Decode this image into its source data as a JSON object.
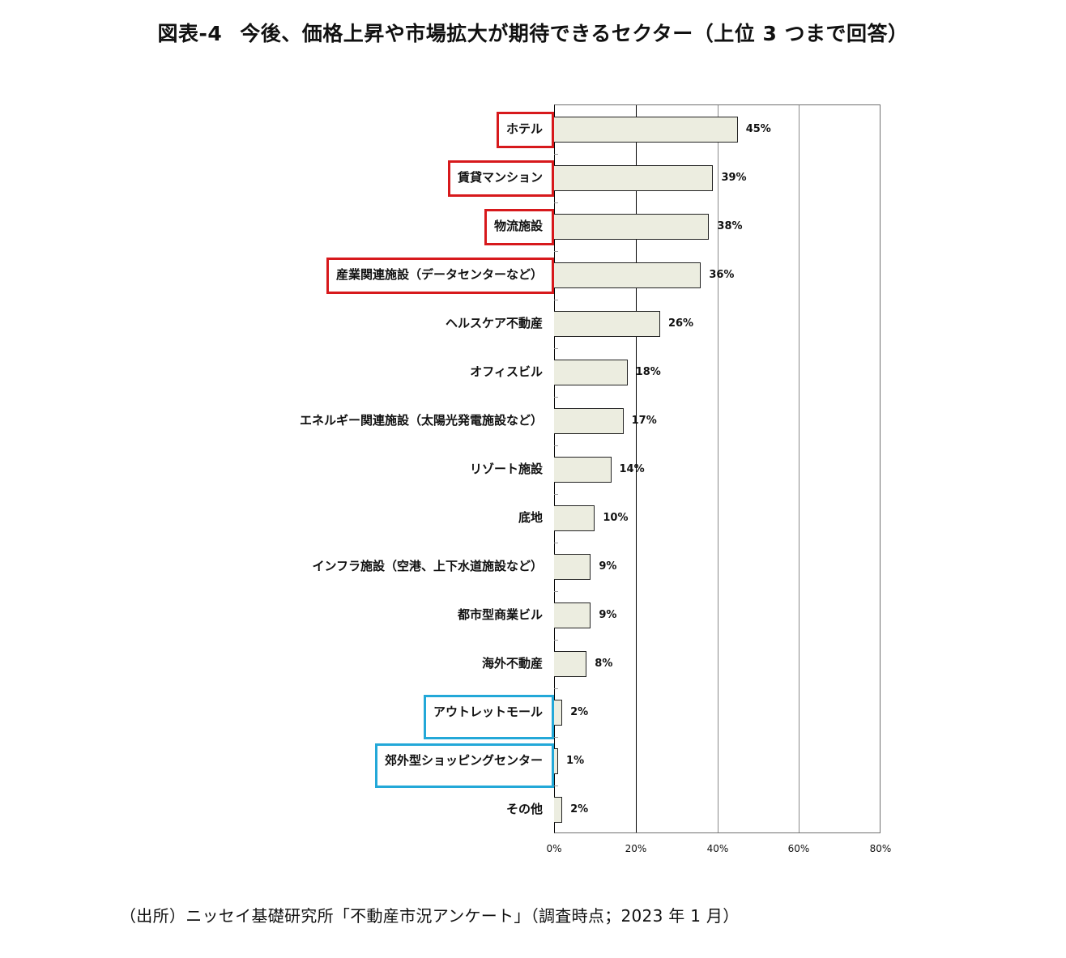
{
  "title": {
    "figure_no": "図表-4",
    "text": "今後、価格上昇や市場拡大が期待できるセクター（上位 3 つまで回答）"
  },
  "source": "（出所）ニッセイ基礎研究所「不動産市況アンケート」（調査時点；2023 年 1 月）",
  "colors": {
    "bar_fill": "#ecede0",
    "bar_border": "#222222",
    "highlight_red": "#d7191c",
    "highlight_blue": "#23a8d8"
  },
  "axis": {
    "ticks": [
      "0%",
      "20%",
      "40%",
      "60%",
      "80%"
    ]
  },
  "rows": [
    {
      "label": "ホテル",
      "value": 45,
      "value_label": "45%",
      "highlight": "red"
    },
    {
      "label": "賃貸マンション",
      "value": 39,
      "value_label": "39%",
      "highlight": "red"
    },
    {
      "label": "物流施設",
      "value": 38,
      "value_label": "38%",
      "highlight": "red"
    },
    {
      "label": "産業関連施設（データセンターなど）",
      "value": 36,
      "value_label": "36%",
      "highlight": "red"
    },
    {
      "label": "ヘルスケア不動産",
      "value": 26,
      "value_label": "26%",
      "highlight": null
    },
    {
      "label": "オフィスビル",
      "value": 18,
      "value_label": "18%",
      "highlight": null
    },
    {
      "label": "エネルギー関連施設（太陽光発電施設など）",
      "value": 17,
      "value_label": "17%",
      "highlight": null
    },
    {
      "label": "リゾート施設",
      "value": 14,
      "value_label": "14%",
      "highlight": null
    },
    {
      "label": "底地",
      "value": 10,
      "value_label": "10%",
      "highlight": null
    },
    {
      "label": "インフラ施設（空港、上下水道施設など）",
      "value": 9,
      "value_label": "9%",
      "highlight": null
    },
    {
      "label": "都市型商業ビル",
      "value": 9,
      "value_label": "9%",
      "highlight": null
    },
    {
      "label": "海外不動産",
      "value": 8,
      "value_label": "8%",
      "highlight": null
    },
    {
      "label": "アウトレットモール",
      "value": 2,
      "value_label": "2%",
      "highlight": "blue"
    },
    {
      "label": "郊外型ショッピングセンター",
      "value": 1,
      "value_label": "1%",
      "highlight": "blue"
    },
    {
      "label": "その他",
      "value": 2,
      "value_label": "2%",
      "highlight": null
    }
  ],
  "chart_data": {
    "type": "bar",
    "orientation": "horizontal",
    "title": "図表-4 今後、価格上昇や市場拡大が期待できるセクター（上位 3 つまで回答）",
    "categories": [
      "ホテル",
      "賃貸マンション",
      "物流施設",
      "産業関連施設（データセンターなど）",
      "ヘルスケア不動産",
      "オフィスビル",
      "エネルギー関連施設（太陽光発電施設など）",
      "リゾート施設",
      "底地",
      "インフラ施設（空港、上下水道施設など）",
      "都市型商業ビル",
      "海外不動産",
      "アウトレットモール",
      "郊外型ショッピングセンター",
      "その他"
    ],
    "values": [
      45,
      39,
      38,
      36,
      26,
      18,
      17,
      14,
      10,
      9,
      9,
      8,
      2,
      1,
      2
    ],
    "xlabel": "",
    "ylabel": "",
    "xlim": [
      0,
      80
    ],
    "x_ticks": [
      "0%",
      "20%",
      "40%",
      "60%",
      "80%"
    ],
    "grid": "vertical gridlines at 20% intervals",
    "data_labels": true,
    "legend": null,
    "annotations": [
      {
        "type": "box",
        "color": "red",
        "targets": [
          "ホテル",
          "賃貸マンション",
          "物流施設",
          "産業関連施設（データセンターなど）"
        ]
      },
      {
        "type": "box",
        "color": "blue",
        "targets": [
          "アウトレットモール",
          "郊外型ショッピングセンター"
        ]
      }
    ],
    "source": "（出所）ニッセイ基礎研究所「不動産市況アンケート」（調査時点；2023 年 1 月）"
  }
}
